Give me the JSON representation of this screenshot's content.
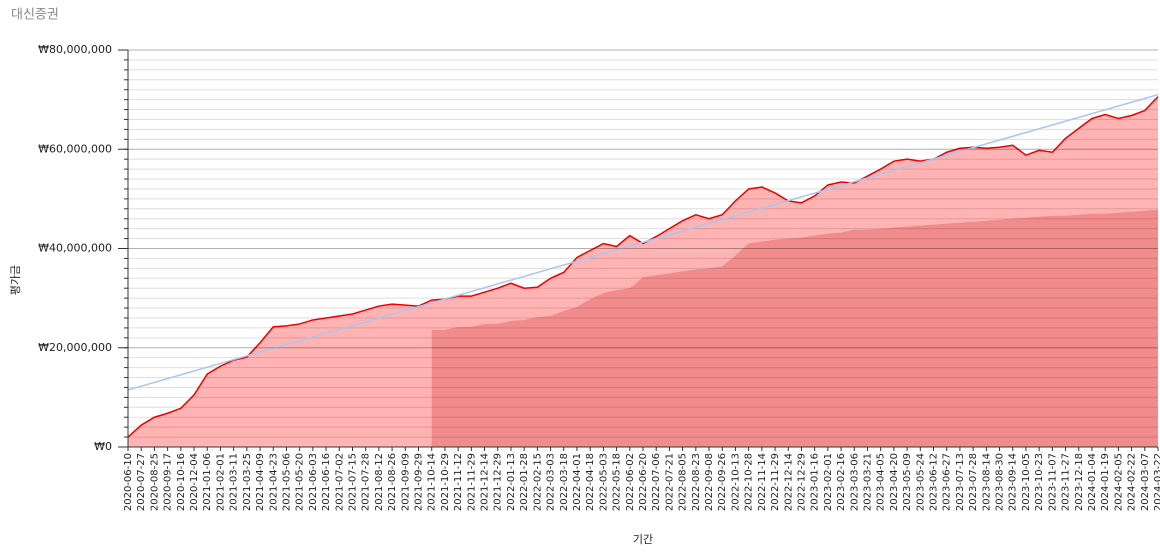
{
  "chart_data": {
    "type": "area",
    "title": "대신증권",
    "y_label": "평가금",
    "x_label": "기간",
    "categories": [
      "2020-06-10",
      "2020-07-27",
      "2020-08-25",
      "2020-09-17",
      "2020-10-16",
      "2020-12-04",
      "2021-01-06",
      "2021-02-01",
      "2021-03-11",
      "2021-03-25",
      "2021-04-09",
      "2021-04-23",
      "2021-05-06",
      "2021-05-20",
      "2021-06-03",
      "2021-06-16",
      "2021-07-02",
      "2021-07-15",
      "2021-07-28",
      "2021-08-12",
      "2021-08-26",
      "2021-09-09",
      "2021-09-29",
      "2021-10-14",
      "2021-10-29",
      "2021-11-12",
      "2021-11-29",
      "2021-12-14",
      "2021-12-29",
      "2022-01-13",
      "2022-01-28",
      "2022-02-15",
      "2022-03-03",
      "2022-03-18",
      "2022-04-01",
      "2022-04-18",
      "2022-05-03",
      "2022-05-18",
      "2022-06-02",
      "2022-06-20",
      "2022-07-06",
      "2022-07-21",
      "2022-08-05",
      "2022-08-23",
      "2022-09-08",
      "2022-09-26",
      "2022-10-13",
      "2022-10-28",
      "2022-11-14",
      "2022-11-29",
      "2022-12-14",
      "2022-12-29",
      "2023-01-16",
      "2023-02-01",
      "2023-02-16",
      "2023-03-06",
      "2023-03-21",
      "2023-04-05",
      "2023-04-20",
      "2023-05-09",
      "2023-05-24",
      "2023-06-12",
      "2023-06-27",
      "2023-07-13",
      "2023-07-28",
      "2023-08-14",
      "2023-08-30",
      "2023-09-14",
      "2023-10-05",
      "2023-10-23",
      "2023-11-07",
      "2023-11-27",
      "2023-12-18",
      "2024-01-04",
      "2024-01-19",
      "2024-02-05",
      "2024-02-22",
      "2024-03-07",
      "2024-03-22"
    ],
    "series": [
      {
        "color": "#ee0000",
        "fill": "#ffb3b3",
        "values": [
          2000000,
          4400000,
          6000000,
          6800000,
          7800000,
          10500000,
          14700000,
          16300000,
          17500000,
          18100000,
          21000000,
          24200000,
          24400000,
          24800000,
          25600000,
          26000000,
          26400000,
          26800000,
          27600000,
          28400000,
          28800000,
          28600000,
          28400000,
          29600000,
          29800000,
          30400000,
          30400000,
          31200000,
          32000000,
          33000000,
          32000000,
          32200000,
          34000000,
          35200000,
          38200000,
          39600000,
          41000000,
          40400000,
          42600000,
          41000000,
          42400000,
          44000000,
          45600000,
          46800000,
          46000000,
          46800000,
          49600000,
          52000000,
          52400000,
          51200000,
          49600000,
          49200000,
          50600000,
          52800000,
          53400000,
          53200000,
          54600000,
          56000000,
          57600000,
          58000000,
          57600000,
          58000000,
          59400000,
          60200000,
          60400000,
          60200000,
          60400000,
          60800000,
          58800000,
          59800000,
          59400000,
          62200000,
          64200000,
          66200000,
          67000000,
          66200000,
          66800000,
          67800000,
          70600000
        ]
      },
      {
        "color": "#f28b8b",
        "fill": "#f28b8b",
        "values": [
          null,
          null,
          null,
          null,
          null,
          null,
          null,
          null,
          null,
          null,
          null,
          null,
          null,
          null,
          null,
          null,
          null,
          null,
          null,
          null,
          null,
          null,
          null,
          23600000,
          23600000,
          24200000,
          24200000,
          24800000,
          24800000,
          25400000,
          25600000,
          26200000,
          26400000,
          27400000,
          28200000,
          29800000,
          31000000,
          31600000,
          32000000,
          34200000,
          34600000,
          35000000,
          35400000,
          35800000,
          36000000,
          36400000,
          38600000,
          41000000,
          41400000,
          41800000,
          42000000,
          42200000,
          42600000,
          43000000,
          43200000,
          43800000,
          43800000,
          44000000,
          44200000,
          44400000,
          44600000,
          44800000,
          45000000,
          45200000,
          45400000,
          45600000,
          45800000,
          46000000,
          46200000,
          46400000,
          46600000,
          46600000,
          46800000,
          47000000,
          47000000,
          47200000,
          47400000,
          47600000,
          47800000
        ]
      }
    ],
    "trend": {
      "color": "#a9c6f0",
      "x": [
        "2020-06-10",
        "2024-03-22"
      ],
      "values": [
        11500000,
        71000000
      ]
    },
    "ylim": [
      0,
      80000000
    ],
    "yticks": [
      {
        "value": 0,
        "label": "₩0"
      },
      {
        "value": 20000000,
        "label": "₩20,000,000"
      },
      {
        "value": 40000000,
        "label": "₩40,000,000"
      },
      {
        "value": 60000000,
        "label": "₩60,000,000"
      },
      {
        "value": 80000000,
        "label": "₩80,000,000"
      }
    ],
    "minor_yticks": [
      0,
      2000000,
      4000000,
      6000000,
      8000000,
      10000000,
      12000000,
      14000000,
      16000000,
      18000000,
      20000000,
      22000000,
      24000000,
      26000000,
      28000000,
      30000000,
      32000000,
      34000000,
      36000000,
      38000000,
      40000000,
      42000000,
      44000000,
      46000000,
      48000000,
      50000000,
      52000000,
      54000000,
      56000000,
      58000000,
      60000000,
      62000000,
      64000000,
      66000000,
      68000000,
      70000000,
      72000000,
      74000000,
      76000000,
      78000000,
      80000000
    ],
    "grid": true
  }
}
